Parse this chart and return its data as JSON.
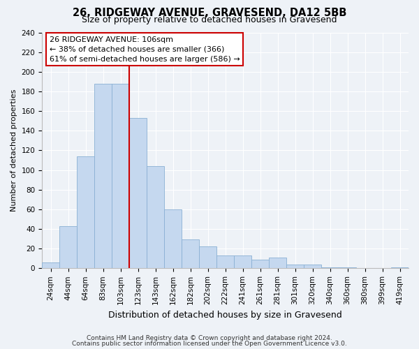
{
  "title": "26, RIDGEWAY AVENUE, GRAVESEND, DA12 5BB",
  "subtitle": "Size of property relative to detached houses in Gravesend",
  "xlabel": "Distribution of detached houses by size in Gravesend",
  "ylabel": "Number of detached properties",
  "bar_labels": [
    "24sqm",
    "44sqm",
    "64sqm",
    "83sqm",
    "103sqm",
    "123sqm",
    "143sqm",
    "162sqm",
    "182sqm",
    "202sqm",
    "222sqm",
    "241sqm",
    "261sqm",
    "281sqm",
    "301sqm",
    "320sqm",
    "340sqm",
    "360sqm",
    "380sqm",
    "399sqm",
    "419sqm"
  ],
  "bar_values": [
    6,
    43,
    114,
    188,
    188,
    153,
    104,
    60,
    29,
    22,
    13,
    13,
    9,
    11,
    4,
    4,
    1,
    1,
    0,
    0,
    1
  ],
  "bar_color": "#c5d8ef",
  "bar_edge_color": "#8ab0d4",
  "highlight_color": "#cc0000",
  "annotation_title": "26 RIDGEWAY AVENUE: 106sqm",
  "annotation_line1": "← 38% of detached houses are smaller (366)",
  "annotation_line2": "61% of semi-detached houses are larger (586) →",
  "annotation_box_color": "#ffffff",
  "annotation_box_edge": "#cc0000",
  "ylim": [
    0,
    240
  ],
  "yticks": [
    0,
    20,
    40,
    60,
    80,
    100,
    120,
    140,
    160,
    180,
    200,
    220,
    240
  ],
  "footnote1": "Contains HM Land Registry data © Crown copyright and database right 2024.",
  "footnote2": "Contains public sector information licensed under the Open Government Licence v3.0.",
  "bg_color": "#eef2f7",
  "grid_color": "#ffffff",
  "title_fontsize": 10.5,
  "subtitle_fontsize": 9,
  "ylabel_fontsize": 8,
  "xlabel_fontsize": 9,
  "tick_fontsize": 7.5,
  "footnote_fontsize": 6.5
}
